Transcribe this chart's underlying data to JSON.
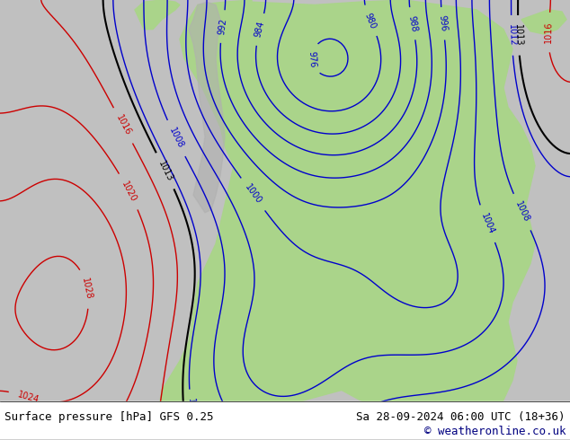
{
  "title_left": "Surface pressure [hPa] GFS 0.25",
  "title_right": "Sa 28-09-2024 06:00 UTC (18+36)",
  "copyright": "© weatheronline.co.uk",
  "bg_color": "#d0d0d0",
  "land_color": "#aad48a",
  "ocean_color": "#d8d8d8",
  "contour_color_blue": "#0000cc",
  "contour_color_red": "#cc0000",
  "contour_color_black": "#000000",
  "label_fontsize": 7,
  "footer_fontsize": 9,
  "figsize": [
    6.34,
    4.9
  ],
  "dpi": 100
}
